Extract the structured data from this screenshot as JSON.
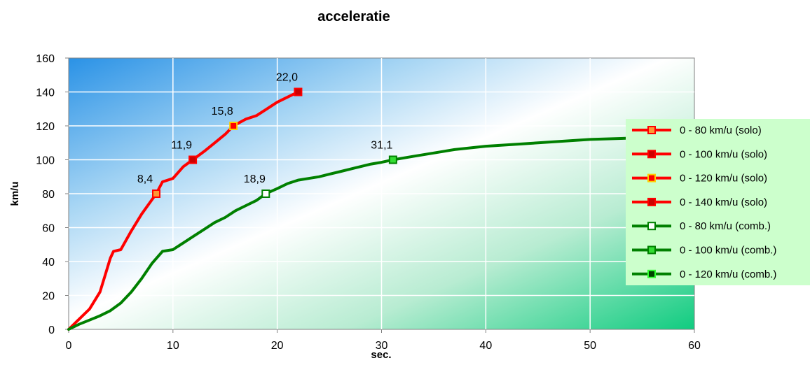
{
  "chart_data": {
    "type": "line",
    "title": "acceleratie",
    "xlabel": "sec.",
    "ylabel": "km/u",
    "xlim": [
      0,
      60
    ],
    "ylim": [
      0,
      160
    ],
    "x_ticks": [
      0,
      10,
      20,
      30,
      40,
      50,
      60
    ],
    "y_ticks": [
      0,
      20,
      40,
      60,
      80,
      100,
      120,
      140,
      160
    ],
    "grid": true,
    "legend_position": "right",
    "colors": {
      "solo": "#ff0000",
      "comb": "#008000",
      "legend_bg": "#ccffcc"
    },
    "curves": [
      {
        "group": "solo",
        "x": [
          0,
          1,
          2,
          3,
          3.5,
          4,
          4.3,
          5,
          6,
          7,
          8.4,
          9,
          10,
          11,
          11.9,
          13,
          14,
          15,
          15.8,
          17,
          18,
          19,
          20,
          21,
          22.0
        ],
        "y": [
          0,
          6,
          12,
          22,
          32,
          42,
          46,
          47,
          58,
          68,
          80,
          87,
          89,
          96,
          100,
          105,
          110,
          115,
          120,
          124,
          126,
          130,
          134,
          137,
          140
        ]
      },
      {
        "group": "comb",
        "x": [
          0,
          1,
          2,
          3,
          4,
          5,
          6,
          7,
          8,
          9,
          10,
          11,
          12,
          13,
          14,
          15,
          16,
          17,
          18,
          18.9,
          20,
          21,
          22,
          23,
          24,
          25,
          26,
          27,
          28,
          29,
          30,
          31.1,
          33,
          35,
          37,
          40,
          45,
          50,
          55
        ],
        "y": [
          0,
          3,
          5.5,
          8,
          11,
          15.5,
          22,
          30,
          39,
          46,
          47,
          51,
          55,
          59,
          63,
          66,
          70,
          73,
          76,
          80,
          83,
          86,
          88,
          89,
          90,
          91.5,
          93,
          94.5,
          96,
          97.5,
          98.5,
          100,
          102,
          104,
          106,
          108,
          110,
          112,
          113
        ]
      }
    ],
    "series": [
      {
        "name": "0 -   80 km/u (solo)",
        "group": "solo",
        "x": 8.4,
        "y": 80,
        "label": "8,4",
        "marker_fill": "#ff9933"
      },
      {
        "name": "0 - 100 km/u (solo)",
        "group": "solo",
        "x": 11.9,
        "y": 100,
        "label": "11,9",
        "marker_fill": "#cc0000"
      },
      {
        "name": "0 - 120 km/u (solo)",
        "group": "solo",
        "x": 15.8,
        "y": 120,
        "label": "15,8",
        "marker_fill": "#ff0000",
        "marker_border": "#ffcc00"
      },
      {
        "name": "0 - 140 km/u (solo)",
        "group": "solo",
        "x": 22.0,
        "y": 140,
        "label": "22,0",
        "marker_fill": "#cc0000"
      },
      {
        "name": "0 -   80 km/u (comb.)",
        "group": "comb",
        "x": 18.9,
        "y": 80,
        "label": "18,9",
        "marker_fill": "#ffffff"
      },
      {
        "name": "0 - 100 km/u (comb.)",
        "group": "comb",
        "x": 31.1,
        "y": 100,
        "label": "31,1",
        "marker_fill": "#33dd33"
      },
      {
        "name": "0 - 120 km/u (comb.)",
        "group": "comb",
        "x": 55.7,
        "y": 114,
        "label": "",
        "marker_fill": "#004400",
        "marker_border": "#33ff33"
      }
    ]
  }
}
